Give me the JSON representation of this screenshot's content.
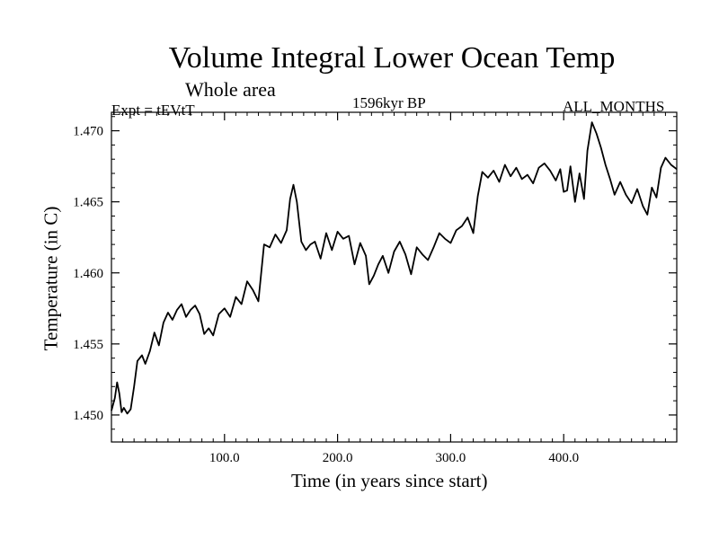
{
  "chart_data": {
    "type": "line",
    "title": "Volume Integral Lower Ocean Temp",
    "subtitle": "Whole area",
    "left_label": "Expt = tEVtT",
    "center_label": "1596kyr BP",
    "right_label": "ALL_MONTHS",
    "xlabel": "Time (in years since start)",
    "ylabel": "Temperature (in C)",
    "xlim": [
      0,
      500
    ],
    "ylim": [
      1.4481,
      1.4713
    ],
    "x_ticks": [
      100,
      200,
      300,
      400
    ],
    "x_tick_labels": [
      "100.0",
      "200.0",
      "300.0",
      "400.0"
    ],
    "y_ticks": [
      1.45,
      1.455,
      1.46,
      1.465,
      1.47
    ],
    "y_tick_labels": [
      "1.450",
      "1.455",
      "1.460",
      "1.465",
      "1.470"
    ],
    "grid": false,
    "series": [
      {
        "name": "Volume Integral Lower Ocean Temp",
        "color": "#000000",
        "x": [
          0,
          3,
          5,
          7,
          9,
          11,
          14,
          17,
          20,
          23,
          27,
          30,
          34,
          38,
          42,
          46,
          50,
          54,
          58,
          62,
          66,
          70,
          74,
          78,
          82,
          86,
          90,
          95,
          100,
          105,
          110,
          115,
          120,
          125,
          130,
          135,
          140,
          145,
          150,
          155,
          158,
          161,
          164,
          168,
          172,
          176,
          180,
          185,
          190,
          195,
          200,
          205,
          210,
          215,
          220,
          225,
          228,
          232,
          236,
          240,
          245,
          250,
          255,
          260,
          265,
          270,
          275,
          280,
          285,
          290,
          295,
          300,
          305,
          310,
          315,
          320,
          324,
          328,
          333,
          338,
          343,
          348,
          353,
          358,
          363,
          368,
          373,
          378,
          383,
          388,
          393,
          397,
          400,
          403,
          406,
          410,
          414,
          418,
          421,
          425,
          429,
          433,
          437,
          441,
          445,
          450,
          455,
          460,
          465,
          470,
          474,
          478,
          482,
          486,
          490,
          495,
          500
        ],
        "values": [
          1.4503,
          1.4512,
          1.4523,
          1.4515,
          1.4502,
          1.4505,
          1.4501,
          1.4504,
          1.452,
          1.4538,
          1.4542,
          1.4536,
          1.4545,
          1.4558,
          1.4549,
          1.4565,
          1.4572,
          1.4567,
          1.4574,
          1.4578,
          1.4569,
          1.4574,
          1.4577,
          1.4571,
          1.4557,
          1.4561,
          1.4556,
          1.4571,
          1.4575,
          1.4569,
          1.4583,
          1.4578,
          1.4594,
          1.4588,
          1.458,
          1.462,
          1.4618,
          1.4627,
          1.4621,
          1.463,
          1.4652,
          1.4662,
          1.465,
          1.4622,
          1.4616,
          1.462,
          1.4622,
          1.461,
          1.4628,
          1.4616,
          1.4629,
          1.4624,
          1.4626,
          1.4606,
          1.4621,
          1.4612,
          1.4592,
          1.4598,
          1.4606,
          1.4612,
          1.46,
          1.4615,
          1.4622,
          1.4613,
          1.4599,
          1.4618,
          1.4613,
          1.4609,
          1.4618,
          1.4628,
          1.4624,
          1.4621,
          1.463,
          1.4633,
          1.4639,
          1.4628,
          1.4654,
          1.4671,
          1.4667,
          1.4672,
          1.4664,
          1.4676,
          1.4668,
          1.4674,
          1.4666,
          1.4669,
          1.4663,
          1.4674,
          1.4677,
          1.4672,
          1.4665,
          1.4673,
          1.4657,
          1.4658,
          1.4675,
          1.465,
          1.467,
          1.4652,
          1.4686,
          1.4706,
          1.4698,
          1.4688,
          1.4676,
          1.4666,
          1.4655,
          1.4664,
          1.4655,
          1.4649,
          1.4659,
          1.4647,
          1.4641,
          1.466,
          1.4653,
          1.4674,
          1.4681,
          1.4676,
          1.4673
        ]
      }
    ]
  }
}
